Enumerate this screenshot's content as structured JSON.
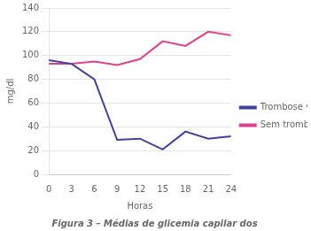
{
  "chart_data": {
    "type": "line",
    "title": "Figura 3 – Médias de glicemia capilar dos",
    "xlabel": "Horas",
    "ylabel": "mg/dl",
    "x": [
      0,
      3,
      6,
      9,
      12,
      15,
      18,
      21,
      24
    ],
    "series": [
      {
        "name": "Trombose venosa",
        "color": "#4040a0",
        "values": [
          96,
          93,
          80,
          29,
          30,
          21,
          36,
          30,
          32
        ]
      },
      {
        "name": "Sem trombose",
        "color": "#e04090",
        "values": [
          93,
          93,
          95,
          92,
          97,
          112,
          108,
          120,
          117
        ]
      }
    ],
    "xlim": [
      0,
      24
    ],
    "xticks": [
      0,
      3,
      6,
      9,
      12,
      15,
      18,
      21,
      24
    ],
    "ylim": [
      0,
      140
    ],
    "yticks": [
      0,
      20,
      40,
      60,
      80,
      100,
      120,
      140
    ],
    "grid": true,
    "legend": "right"
  }
}
